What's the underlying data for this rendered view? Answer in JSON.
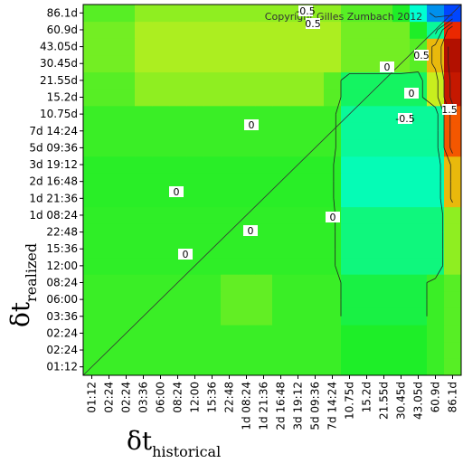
{
  "chart_data": {
    "type": "heatmap",
    "copyright": "Copyright Gilles Zumbach 2012",
    "x_label": {
      "symbol": "δt",
      "subscript": "historical"
    },
    "y_label": {
      "symbol": "δt",
      "subscript": "realized"
    },
    "x_categories": [
      "01:12",
      "02:24",
      "02:24",
      "03:36",
      "06:00",
      "08:24",
      "12:00",
      "15:36",
      "22:48",
      "1d 08:24",
      "1d 21:36",
      "2d 16:48",
      "3d 19:12",
      "5d 09:36",
      "7d 14:24",
      "10.75d",
      "15.2d",
      "21.55d",
      "30.45d",
      "43.05d",
      "60.9d",
      "86.1d"
    ],
    "y_categories": [
      "01:12",
      "02:24",
      "02:24",
      "03:36",
      "06:00",
      "08:24",
      "12:00",
      "15:36",
      "22:48",
      "1d 08:24",
      "1d 21:36",
      "2d 16:48",
      "3d 19:12",
      "5d 09:36",
      "7d 14:24",
      "10.75d",
      "15.2d",
      "21.55d",
      "30.45d",
      "43.05d",
      "60.9d",
      "86.1d"
    ],
    "z": [
      [
        0.05,
        0.05,
        0.05,
        0.05,
        0.05,
        0.05,
        0.05,
        0.05,
        0.05,
        0.05,
        0.05,
        0.05,
        0.05,
        0.05,
        0.05,
        0,
        0,
        0,
        0,
        0,
        0.05,
        0.1
      ],
      [
        0.05,
        0.05,
        0.05,
        0.05,
        0.05,
        0.05,
        0.05,
        0.05,
        0.05,
        0.05,
        0.05,
        0.05,
        0.05,
        0.05,
        0.05,
        0,
        0,
        0,
        0,
        0,
        0.05,
        0.1
      ],
      [
        0.05,
        0.05,
        0.05,
        0.05,
        0.05,
        0.05,
        0.05,
        0.05,
        0.05,
        0.05,
        0.05,
        0.05,
        0.05,
        0.05,
        0.05,
        0,
        0,
        0,
        0,
        0,
        0.05,
        0.1
      ],
      [
        0.05,
        0.05,
        0.05,
        0.05,
        0.05,
        0.05,
        0.05,
        0.05,
        0.12,
        0.12,
        0.12,
        0.05,
        0.05,
        0.05,
        0.05,
        -0.05,
        -0.05,
        -0.05,
        -0.05,
        -0.05,
        0.05,
        0.1
      ],
      [
        0.05,
        0.05,
        0.05,
        0.05,
        0.05,
        0.05,
        0.05,
        0.05,
        0.12,
        0.12,
        0.12,
        0.05,
        0.05,
        0.05,
        0.05,
        -0.05,
        -0.05,
        -0.05,
        -0.05,
        -0.05,
        0.05,
        0.1
      ],
      [
        0.05,
        0.05,
        0.05,
        0.05,
        0.05,
        0.05,
        0.05,
        0.05,
        0.12,
        0.12,
        0.12,
        0.05,
        0.05,
        0.05,
        0.05,
        -0.05,
        -0.05,
        -0.05,
        -0.05,
        -0.05,
        0.05,
        0.1
      ],
      [
        0.03,
        0.03,
        0.03,
        0.03,
        0.03,
        0.03,
        0.03,
        0.03,
        0.03,
        0.03,
        0.03,
        0.03,
        0.03,
        0.03,
        0.03,
        -0.15,
        -0.15,
        -0.15,
        -0.15,
        -0.15,
        -0.15,
        0.2
      ],
      [
        0.03,
        0.03,
        0.03,
        0.03,
        0.03,
        0.03,
        0.03,
        0.03,
        0.03,
        0.03,
        0.03,
        0.03,
        0.03,
        0.03,
        0.03,
        -0.15,
        -0.15,
        -0.15,
        -0.15,
        -0.15,
        -0.15,
        0.2
      ],
      [
        0.03,
        0.03,
        0.03,
        0.03,
        0.03,
        0.03,
        0.03,
        0.03,
        0.03,
        0.03,
        0.03,
        0.03,
        0.03,
        0.03,
        0.03,
        -0.15,
        -0.15,
        -0.15,
        -0.15,
        -0.15,
        -0.15,
        0.2
      ],
      [
        0.03,
        0.03,
        0.03,
        0.03,
        0.03,
        0.03,
        0.03,
        0.03,
        0.03,
        0.03,
        0.03,
        0.03,
        0.03,
        0.03,
        0.03,
        -0.15,
        -0.15,
        -0.15,
        -0.15,
        -0.15,
        -0.15,
        0.2
      ],
      [
        0.02,
        0.02,
        0.02,
        0.02,
        0.02,
        0.02,
        0.02,
        0.02,
        0.02,
        0.02,
        0.02,
        0.02,
        0.02,
        0.02,
        0.02,
        -0.25,
        -0.25,
        -0.25,
        -0.25,
        -0.25,
        -0.25,
        0.6
      ],
      [
        0.02,
        0.02,
        0.02,
        0.02,
        0.02,
        0.02,
        0.02,
        0.02,
        0.02,
        0.02,
        0.02,
        0.02,
        0.02,
        0.02,
        0.02,
        -0.25,
        -0.25,
        -0.25,
        -0.25,
        -0.25,
        -0.25,
        0.6
      ],
      [
        0.02,
        0.02,
        0.02,
        0.02,
        0.02,
        0.02,
        0.02,
        0.02,
        0.02,
        0.02,
        0.02,
        0.02,
        0.02,
        0.02,
        0.02,
        -0.25,
        -0.25,
        -0.25,
        -0.25,
        -0.25,
        -0.25,
        0.6
      ],
      [
        0.05,
        0.05,
        0.05,
        0.05,
        0.05,
        0.05,
        0.05,
        0.05,
        0.05,
        0.05,
        0.05,
        0.05,
        0.05,
        0.05,
        0.05,
        -0.2,
        -0.2,
        -0.2,
        -0.2,
        -0.2,
        -0.2,
        1.2
      ],
      [
        0.05,
        0.05,
        0.05,
        0.05,
        0.05,
        0.05,
        0.05,
        0.05,
        0.05,
        0.05,
        0.05,
        0.05,
        0.05,
        0.05,
        0.05,
        -0.2,
        -0.2,
        -0.2,
        -0.2,
        -0.2,
        -0.2,
        1.2
      ],
      [
        0.05,
        0.05,
        0.05,
        0.05,
        0.05,
        0.05,
        0.05,
        0.05,
        0.05,
        0.05,
        0.05,
        0.05,
        0.05,
        0.05,
        0.05,
        -0.2,
        -0.2,
        -0.2,
        -0.2,
        -0.2,
        -0.2,
        1.2
      ],
      [
        0.1,
        0.1,
        0.1,
        0.2,
        0.2,
        0.2,
        0.2,
        0.2,
        0.2,
        0.2,
        0.2,
        0.2,
        0.2,
        0.2,
        0.1,
        -0.1,
        -0.1,
        -0.1,
        -0.1,
        -0.1,
        0.3,
        1.7
      ],
      [
        0.1,
        0.1,
        0.1,
        0.2,
        0.2,
        0.2,
        0.2,
        0.2,
        0.2,
        0.2,
        0.2,
        0.2,
        0.2,
        0.2,
        0.1,
        -0.1,
        -0.1,
        -0.1,
        -0.1,
        -0.1,
        0.3,
        1.7
      ],
      [
        0.15,
        0.15,
        0.15,
        0.25,
        0.25,
        0.25,
        0.25,
        0.25,
        0.25,
        0.25,
        0.25,
        0.25,
        0.25,
        0.25,
        0.25,
        0.15,
        0.15,
        0.15,
        0.15,
        0.1,
        0.6,
        1.8
      ],
      [
        0.15,
        0.15,
        0.15,
        0.25,
        0.25,
        0.25,
        0.25,
        0.25,
        0.25,
        0.25,
        0.25,
        0.25,
        0.25,
        0.25,
        0.25,
        0.15,
        0.15,
        0.15,
        0.15,
        0.1,
        0.6,
        1.8
      ],
      [
        0.15,
        0.15,
        0.15,
        0.25,
        0.25,
        0.25,
        0.25,
        0.25,
        0.25,
        0.25,
        0.25,
        0.25,
        0.25,
        0.25,
        0.25,
        0.15,
        0.15,
        0.15,
        0.15,
        0,
        -0.2,
        1.5
      ],
      [
        0.1,
        0.1,
        0.1,
        0.2,
        0.2,
        0.2,
        0.2,
        0.2,
        0.2,
        0.2,
        0.2,
        0.2,
        0.2,
        0.2,
        0.2,
        0.1,
        0.1,
        0.1,
        0,
        -0.3,
        -0.6,
        -0.8
      ]
    ],
    "contour_levels": [
      -0.5,
      0,
      0.5,
      1,
      1.5
    ],
    "contour_labels": [
      -0.5,
      0.5,
      0,
      0.5,
      0,
      -0.5,
      1.5,
      0,
      0,
      0,
      0,
      0
    ]
  }
}
